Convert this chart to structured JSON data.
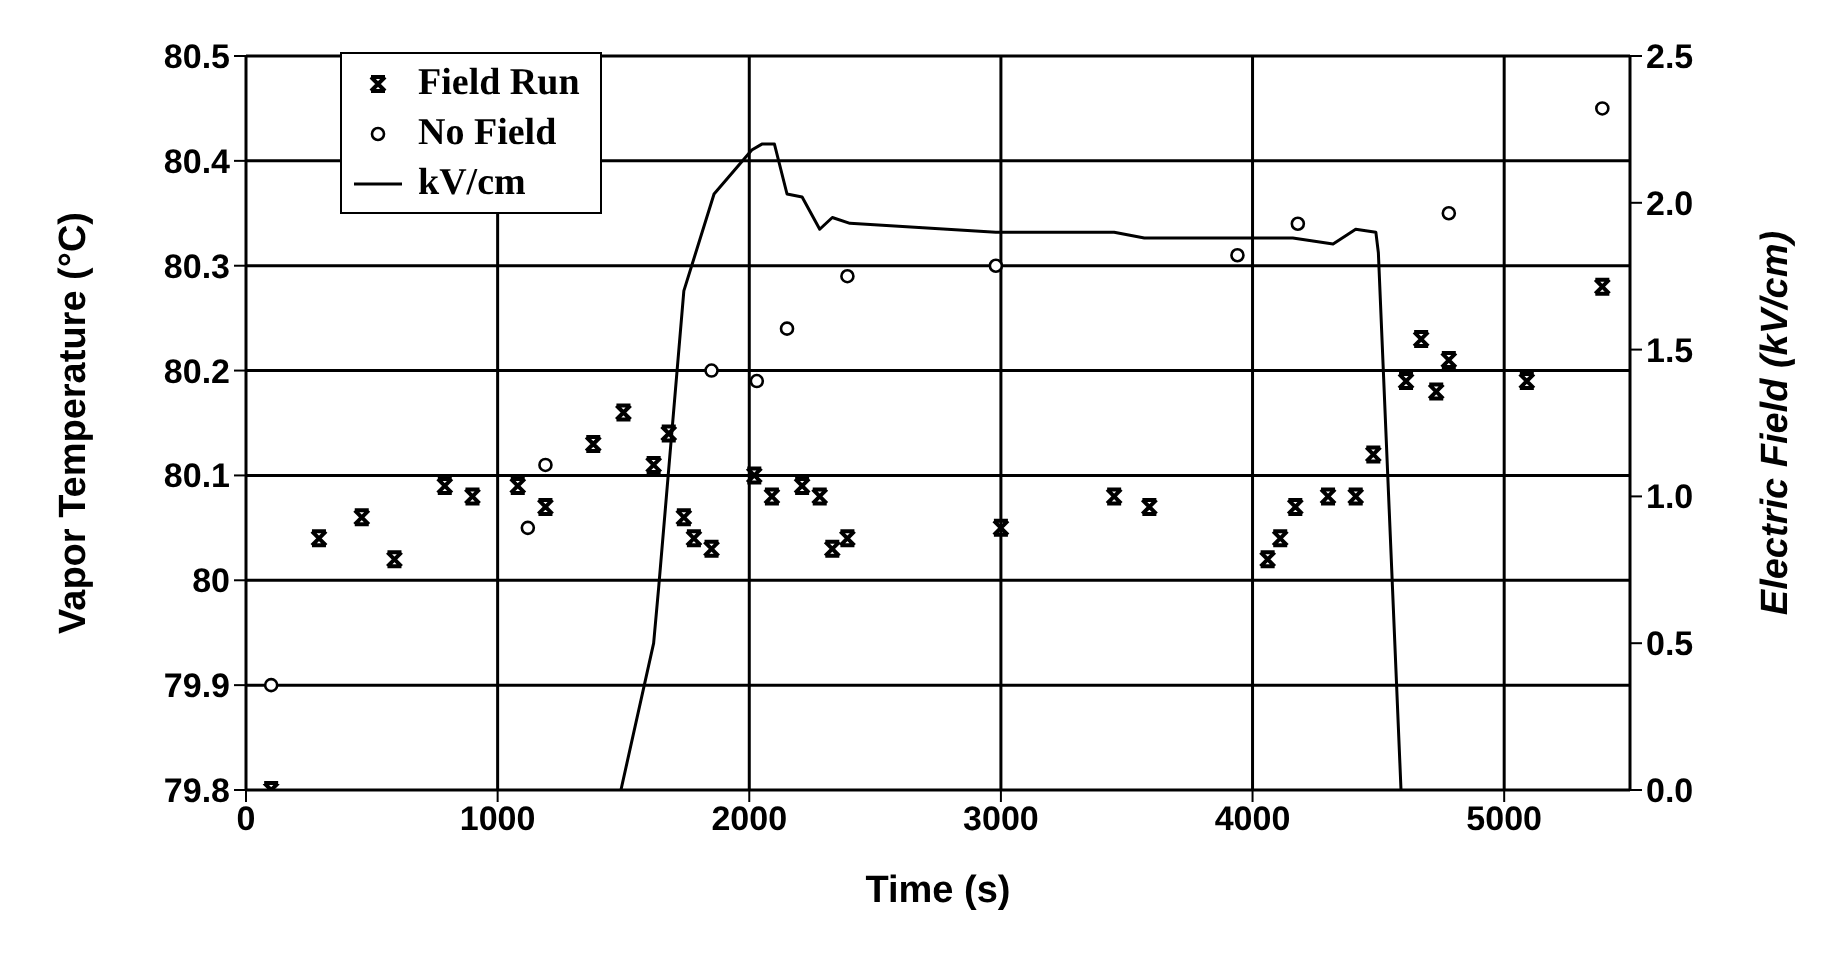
{
  "chart_data": {
    "type": "scatter",
    "xlabel": "Time (s)",
    "ylabel": "Vapor Temperature (°C)",
    "y2label": "Electric Field (kV/cm)",
    "xlim": [
      0,
      5500
    ],
    "xticks": [
      0,
      1000,
      2000,
      3000,
      4000,
      5000
    ],
    "ylim": [
      79.8,
      80.5
    ],
    "yticks": [
      79.8,
      79.9,
      80,
      80.1,
      80.2,
      80.3,
      80.4,
      80.5
    ],
    "y2lim": [
      0,
      2.5
    ],
    "y2ticks": [
      {
        "value": 0,
        "label": "0.0"
      },
      {
        "value": 0.5,
        "label": "0.5"
      },
      {
        "value": 1,
        "label": "1.0"
      },
      {
        "value": 1.5,
        "label": "1.5"
      },
      {
        "value": 2,
        "label": "2.0"
      },
      {
        "value": 2.5,
        "label": "2.5"
      }
    ],
    "grid": true,
    "legend": "top left",
    "series": [
      {
        "name": "Field Run",
        "marker": "cross",
        "color": "#000000",
        "x": [
          100,
          290,
          460,
          590,
          790,
          900,
          1080,
          1190,
          1380,
          1500,
          1620,
          1680,
          1740,
          1780,
          1850,
          2020,
          2090,
          2210,
          2280,
          2330,
          2390,
          3000,
          3450,
          3590,
          4060,
          4110,
          4170,
          4300,
          4410,
          4480,
          4610,
          4670,
          4730,
          4780,
          5090,
          5390
        ],
        "values": [
          79.8,
          80.04,
          80.06,
          80.02,
          80.09,
          80.08,
          80.09,
          80.07,
          80.13,
          80.16,
          80.11,
          80.14,
          80.06,
          80.04,
          80.03,
          80.1,
          80.08,
          80.09,
          80.08,
          80.03,
          80.04,
          80.05,
          80.08,
          80.07,
          80.02,
          80.04,
          80.07,
          80.08,
          80.08,
          80.12,
          80.19,
          80.23,
          80.18,
          80.21,
          80.19,
          80.28
        ]
      },
      {
        "name": "No Field",
        "marker": "circle",
        "color": "#000000",
        "x": [
          100,
          1120,
          1190,
          1850,
          2030,
          2150,
          2390,
          2980,
          3940,
          4180,
          4780,
          5390
        ],
        "values": [
          79.9,
          80.05,
          80.11,
          80.2,
          80.19,
          80.24,
          80.29,
          80.3,
          80.31,
          80.34,
          80.35,
          80.45
        ]
      },
      {
        "name": "kV/cm",
        "type": "line",
        "axis": "y2",
        "marker": "none",
        "color": "#000000",
        "x": [
          1490,
          1620,
          1640,
          1740,
          1860,
          2010,
          2050,
          2100,
          2150,
          2210,
          2280,
          2330,
          2400,
          2980,
          3450,
          3570,
          4160,
          4320,
          4410,
          4490,
          4500,
          4590
        ],
        "values": [
          0,
          0.5,
          0.69,
          1.7,
          2.03,
          2.18,
          2.2,
          2.2,
          2.03,
          2.02,
          1.91,
          1.95,
          1.93,
          1.9,
          1.9,
          1.88,
          1.88,
          1.86,
          1.91,
          1.9,
          1.83,
          0
        ]
      }
    ]
  }
}
